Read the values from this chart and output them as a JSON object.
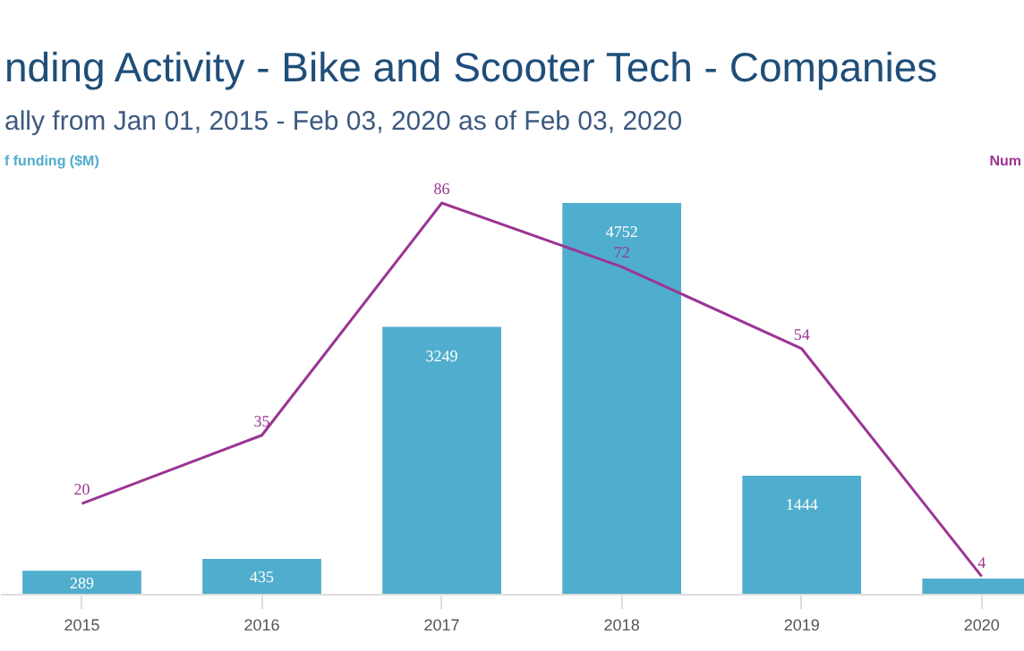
{
  "chart_data": {
    "type": "bar",
    "title": "nding Activity - Bike and Scooter Tech - Companies",
    "subtitle": "ally from Jan 01, 2015 - Feb 03, 2020 as of Feb 03, 2020",
    "ylabel": "f funding ($M)",
    "y2label": "Num",
    "categories": [
      "2015",
      "2016",
      "2017",
      "2018",
      "2019",
      "2020"
    ],
    "tick_labels": "x",
    "grid": false,
    "series": [
      {
        "color": "#4fadcd",
        "values": [
          289,
          435,
          3249,
          4752,
          1444,
          195
        ],
        "value_labels": [
          "289",
          "435",
          "3249",
          "4752",
          "1444",
          null
        ]
      },
      {
        "type": "line",
        "axis": "y2",
        "color": "#9b3593",
        "marker": "none",
        "values": [
          20,
          35,
          86,
          72,
          54,
          4
        ],
        "value_labels": [
          "20",
          "35",
          "86",
          "72",
          "54",
          "4"
        ]
      }
    ]
  }
}
